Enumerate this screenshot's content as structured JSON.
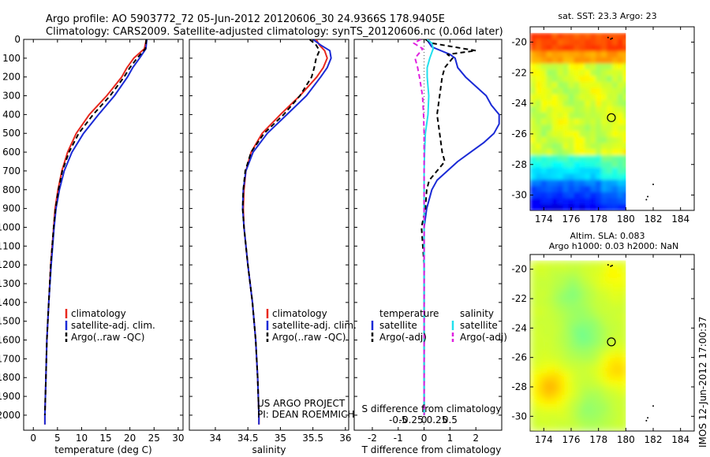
{
  "header": {
    "line1": "Argo profile: AO 5903772_72 05-Jun-2012 20120606_30 24.9366S 178.9405E",
    "line2": "Climatology: CARS2009. Satellite-adjusted climatology: synTS_20120606.nc (0.06d later)"
  },
  "footer": {
    "credit1": "US ARGO PROJECT",
    "credit2": "PI: DEAN ROEMMICH",
    "stamp": "IMOS 12-Jun-2012 17:00:37"
  },
  "colors": {
    "climatology": "#e8281e",
    "satellite": "#1a2ad6",
    "argo": "#000000",
    "sal_satellite": "#22e0ee",
    "sal_argo": "#e020e0"
  },
  "chart_data": [
    {
      "type": "line",
      "id": "temperature",
      "xlabel": "temperature (deg C)",
      "xlim": [
        -2,
        31
      ],
      "ylim": [
        2080,
        0
      ],
      "xticks": [
        0,
        5,
        10,
        15,
        20,
        25,
        30
      ],
      "yticks": [
        0,
        100,
        200,
        300,
        400,
        500,
        600,
        700,
        800,
        900,
        1000,
        1100,
        1200,
        1300,
        1400,
        1500,
        1600,
        1700,
        1800,
        1900,
        2000
      ],
      "legend": [
        "climatology",
        "satellite-adj. clim.",
        "Argo(..raw -QC)"
      ],
      "series": [
        {
          "name": "climatology",
          "color": "#e8281e",
          "dash": "",
          "depth": [
            0,
            50,
            100,
            150,
            200,
            300,
            400,
            500,
            600,
            700,
            800,
            900,
            1000,
            1200,
            1400,
            1600,
            1800,
            2000,
            2050
          ],
          "values": [
            23.4,
            23.0,
            20.8,
            19.4,
            18.3,
            15.2,
            11.6,
            8.9,
            7.1,
            5.9,
            5.1,
            4.5,
            4.2,
            3.6,
            3.2,
            2.8,
            2.6,
            2.4,
            2.4
          ]
        },
        {
          "name": "satellite-adj. clim.",
          "color": "#1a2ad6",
          "dash": "",
          "depth": [
            0,
            50,
            100,
            150,
            200,
            300,
            400,
            500,
            600,
            700,
            800,
            900,
            1000,
            1200,
            1400,
            1600,
            1800,
            2000,
            2050
          ],
          "values": [
            23.5,
            23.3,
            22.0,
            20.6,
            19.5,
            16.8,
            13.5,
            10.4,
            8.0,
            6.4,
            5.4,
            4.7,
            4.3,
            3.7,
            3.2,
            2.8,
            2.6,
            2.4,
            2.4
          ]
        },
        {
          "name": "Argo(..raw -QC)",
          "color": "#000000",
          "dash": "6,4",
          "depth": [
            0,
            50,
            100,
            150,
            200,
            300,
            400,
            500,
            600,
            700,
            800,
            900,
            1000,
            1200,
            1400,
            1600,
            1800,
            2000
          ],
          "values": [
            23.4,
            23.2,
            21.5,
            20.0,
            18.8,
            15.9,
            12.4,
            9.4,
            7.4,
            6.0,
            5.2,
            4.6,
            4.2,
            3.6,
            3.2,
            2.8,
            2.6,
            2.4
          ]
        }
      ]
    },
    {
      "type": "line",
      "id": "salinity",
      "xlabel": "salinity",
      "xlim": [
        33.6,
        36.05
      ],
      "ylim": [
        2080,
        0
      ],
      "xticks": [
        34,
        34.5,
        35,
        35.5,
        36
      ],
      "legend": [
        "climatology",
        "satellite-adj. clim.",
        "Argo(..raw -QC)"
      ],
      "series": [
        {
          "name": "climatology",
          "color": "#e8281e",
          "dash": "",
          "depth": [
            0,
            30,
            60,
            100,
            150,
            200,
            300,
            400,
            500,
            600,
            700,
            800,
            900,
            1000,
            1200,
            1400,
            1600,
            1800,
            2000,
            2050
          ],
          "values": [
            35.55,
            35.6,
            35.68,
            35.72,
            35.66,
            35.56,
            35.3,
            35.0,
            34.72,
            34.55,
            34.47,
            34.44,
            34.43,
            34.44,
            34.5,
            34.57,
            34.62,
            34.65,
            34.67,
            34.67
          ]
        },
        {
          "name": "satellite-adj. clim.",
          "color": "#1a2ad6",
          "dash": "",
          "depth": [
            0,
            30,
            60,
            100,
            150,
            200,
            300,
            400,
            500,
            600,
            700,
            800,
            900,
            1000,
            1200,
            1400,
            1600,
            1800,
            2000,
            2050
          ],
          "values": [
            35.5,
            35.62,
            35.76,
            35.78,
            35.72,
            35.62,
            35.4,
            35.1,
            34.8,
            34.58,
            34.47,
            34.43,
            34.42,
            34.44,
            34.5,
            34.57,
            34.62,
            34.65,
            34.67,
            34.67
          ]
        },
        {
          "name": "Argo(..raw -QC)",
          "color": "#000000",
          "dash": "6,4",
          "depth": [
            0,
            30,
            60,
            100,
            150,
            200,
            300,
            400,
            500,
            600,
            700,
            800,
            900,
            1000,
            1200,
            1400,
            1600,
            1800,
            2000
          ],
          "values": [
            35.45,
            35.55,
            35.6,
            35.55,
            35.52,
            35.48,
            35.3,
            35.05,
            34.75,
            34.55,
            34.46,
            34.43,
            34.42,
            34.44,
            34.5,
            34.57,
            34.62,
            34.65,
            34.67
          ]
        }
      ]
    },
    {
      "type": "line",
      "id": "difference",
      "xlabel": "T difference from climatology",
      "xlabel_top": "S difference from climatology",
      "xlim": [
        -2.7,
        3.0
      ],
      "ylim": [
        2080,
        0
      ],
      "xticks": [
        -2,
        -1,
        0,
        1,
        2
      ],
      "xticks_s": [
        "-0.5",
        "-0.25",
        "0",
        "0.25",
        "0.5"
      ],
      "legend_headers": [
        "temperature",
        "salinity"
      ],
      "legend": [
        "satellite",
        "Argo(-adj)",
        "satellite",
        "Argo(-adj)"
      ],
      "series": [
        {
          "name": "satellite",
          "color": "#1a2ad6",
          "dash": "",
          "depth": [
            0,
            40,
            80,
            100,
            150,
            200,
            300,
            350,
            400,
            450,
            500,
            550,
            600,
            650,
            700,
            750,
            800,
            900,
            1000,
            1100,
            1200,
            1400,
            1600,
            1800,
            2000
          ],
          "values": [
            0.1,
            0.3,
            1.0,
            1.2,
            1.3,
            1.6,
            2.4,
            2.6,
            2.9,
            2.9,
            2.7,
            2.3,
            1.8,
            1.3,
            0.9,
            0.5,
            0.3,
            0.1,
            0.0,
            0.0,
            0.0,
            0.0,
            0.0,
            0.0,
            0.0
          ]
        },
        {
          "name": "Argo(-adj)",
          "color": "#000000",
          "dash": "6,4",
          "depth": [
            0,
            20,
            60,
            80,
            100,
            150,
            200,
            300,
            400,
            500,
            600,
            650,
            700,
            750,
            800,
            900,
            1000,
            1200,
            1400,
            1600,
            1800,
            2000
          ],
          "values": [
            0.05,
            0.3,
            2.0,
            0.9,
            1.1,
            0.8,
            0.7,
            0.6,
            0.5,
            0.6,
            0.7,
            0.8,
            0.5,
            0.2,
            0.1,
            0.05,
            -0.1,
            0.0,
            0.0,
            0.0,
            0.0,
            0.0
          ]
        },
        {
          "name": "satellite",
          "color": "#22e0ee",
          "dash": "",
          "depth": [
            0,
            20,
            50,
            100,
            150,
            200,
            300,
            400,
            500,
            600,
            700,
            800,
            900,
            1000,
            1200,
            1400,
            1600,
            1800,
            2000
          ],
          "values": [
            0.12,
            0.3,
            0.35,
            0.22,
            0.12,
            0.12,
            0.18,
            0.15,
            0.05,
            0.02,
            0.0,
            0.0,
            0.0,
            0.0,
            0.0,
            0.0,
            0.0,
            0.0,
            0.0
          ]
        },
        {
          "name": "Argo(-adj)",
          "color": "#e020e0",
          "dash": "6,4",
          "depth": [
            0,
            20,
            50,
            100,
            150,
            200,
            300,
            400,
            500,
            600,
            700,
            800,
            900,
            1000,
            1200,
            1400,
            1600,
            1800,
            2000
          ],
          "values": [
            -0.12,
            -0.4,
            -0.05,
            -0.35,
            -0.25,
            -0.18,
            -0.06,
            -0.02,
            0.0,
            0.0,
            0.0,
            0.0,
            0.0,
            0.0,
            0.0,
            0.0,
            0.0,
            0.0,
            0.0
          ]
        }
      ]
    },
    {
      "type": "heatmap",
      "id": "sst",
      "title": "sat. SST: 23.3  Argo: 23",
      "xlim": [
        173,
        185
      ],
      "ylim": [
        -31,
        -19
      ],
      "xticks": [
        174,
        176,
        178,
        180,
        182,
        184
      ],
      "yticks": [
        -20,
        -22,
        -24,
        -26,
        -28,
        -30
      ],
      "marker": {
        "lon": 178.94,
        "lat": -24.94
      }
    },
    {
      "type": "heatmap",
      "id": "sla",
      "title": "Altim. SLA: 0.083",
      "subtitle": "Argo h1000: 0.03  h2000: NaN",
      "xlim": [
        173,
        185
      ],
      "ylim": [
        -31,
        -19
      ],
      "xticks": [
        174,
        176,
        178,
        180,
        182,
        184
      ],
      "yticks": [
        -20,
        -22,
        -24,
        -26,
        -28,
        -30
      ],
      "marker": {
        "lon": 178.94,
        "lat": -24.94
      }
    }
  ]
}
